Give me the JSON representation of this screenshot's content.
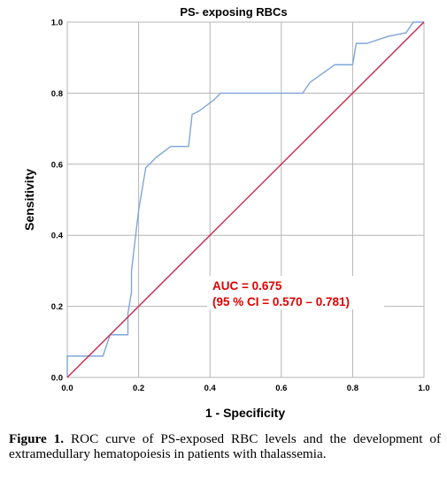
{
  "chart_data": {
    "type": "line",
    "title": "PS- exposing RBCs",
    "xlabel": "1 - Specificity",
    "ylabel": "Sensitivity",
    "xlim": [
      0,
      1
    ],
    "ylim": [
      0,
      1
    ],
    "x_ticks": [
      "0.0",
      "0.2",
      "0.4",
      "0.6",
      "0.8",
      "1.0"
    ],
    "y_ticks": [
      "0.0",
      "0.2",
      "0.4",
      "0.6",
      "0.8",
      "1.0"
    ],
    "grid": true,
    "series": [
      {
        "color": "#7ea6d8",
        "x": [
          0.0,
          0.0,
          0.1,
          0.12,
          0.17,
          0.17,
          0.18,
          0.18,
          0.2,
          0.22,
          0.25,
          0.29,
          0.34,
          0.35,
          0.37,
          0.41,
          0.43,
          0.5,
          0.56,
          0.66,
          0.68,
          0.75,
          0.8,
          0.81,
          0.84,
          0.87,
          0.9,
          0.95,
          0.97,
          1.0
        ],
        "y": [
          0.0,
          0.06,
          0.06,
          0.12,
          0.12,
          0.18,
          0.24,
          0.3,
          0.47,
          0.59,
          0.62,
          0.65,
          0.65,
          0.74,
          0.75,
          0.78,
          0.8,
          0.8,
          0.8,
          0.8,
          0.83,
          0.88,
          0.88,
          0.94,
          0.94,
          0.95,
          0.96,
          0.97,
          1.0,
          1.0
        ]
      },
      {
        "color": "#c8284b",
        "x": [
          0,
          1
        ],
        "y": [
          0,
          1
        ]
      }
    ],
    "annotation": {
      "line1": "AUC = 0.675",
      "line2": "(95 % CI = 0.570 – 0.781)",
      "color": "#e00000"
    }
  },
  "caption": {
    "label": "Figure 1.",
    "text": " ROC curve of PS-exposed RBC levels and the development of extramedullary hematopoiesis in patients with thalassemia."
  }
}
